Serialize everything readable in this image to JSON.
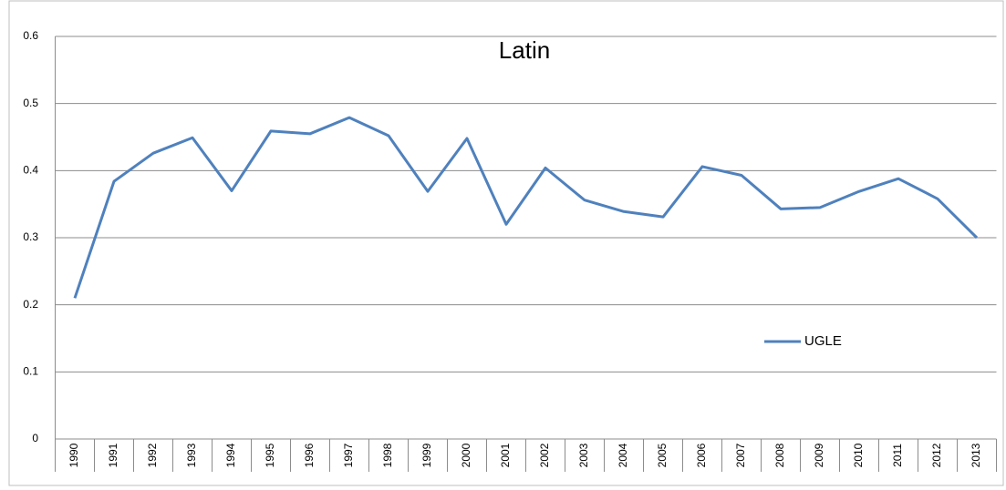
{
  "chart_data": {
    "type": "line",
    "title": "Latin",
    "categories": [
      "1990",
      "1991",
      "1992",
      "1993",
      "1994",
      "1995",
      "1996",
      "1997",
      "1998",
      "1999",
      "2000",
      "2001",
      "2002",
      "2003",
      "2004",
      "2005",
      "2006",
      "2007",
      "2008",
      "2009",
      "2010",
      "2011",
      "2012",
      "2013"
    ],
    "series": [
      {
        "name": "UGLE",
        "color": "#4f81bd",
        "values": [
          0.21,
          0.384,
          0.426,
          0.449,
          0.37,
          0.459,
          0.455,
          0.479,
          0.452,
          0.369,
          0.448,
          0.32,
          0.404,
          0.356,
          0.339,
          0.331,
          0.406,
          0.393,
          0.343,
          0.345,
          0.369,
          0.388,
          0.358,
          0.3
        ]
      }
    ],
    "ylim": [
      0,
      0.6
    ],
    "yticks": [
      0,
      0.1,
      0.2,
      0.3,
      0.4,
      0.5,
      0.6
    ],
    "grid": true
  }
}
